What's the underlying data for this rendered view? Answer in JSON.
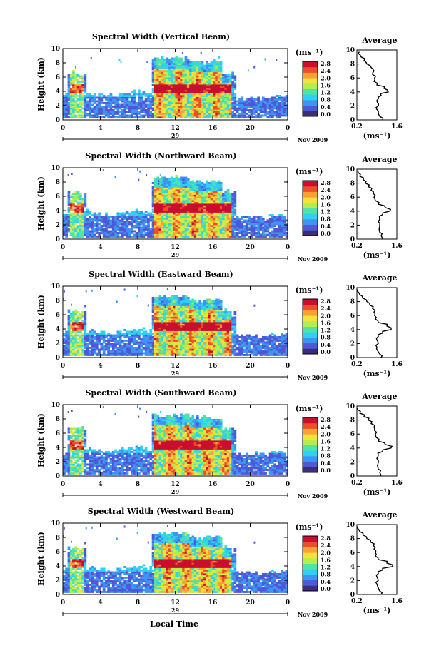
{
  "figure": {
    "bottom_xlabel": "Local Time"
  },
  "colorbar": {
    "unit_label": "(ms⁻¹)",
    "ticks": [
      "0.0",
      "0.4",
      "0.8",
      "1.2",
      "1.6",
      "2.0",
      "2.4",
      "2.8"
    ],
    "colors": [
      "#3b2d7a",
      "#4f58d6",
      "#3e94f0",
      "#2fd0f3",
      "#4ee4a8",
      "#b3ee4c",
      "#f4e23c",
      "#f7a233",
      "#ef4c2c",
      "#c8102e"
    ]
  },
  "chart_data": [
    {
      "type": "heatmap",
      "title": "Spectral Width (Vertical Beam)",
      "ylabel": "Height (km)",
      "xticks": [
        "0",
        "4",
        "8",
        "12",
        "16",
        "20",
        "0"
      ],
      "yticks": [
        "0",
        "2",
        "4",
        "6",
        "8",
        "10"
      ],
      "xlim": [
        0,
        24
      ],
      "ylim": [
        0,
        10
      ],
      "date_label": "29",
      "month_label": "Nov 2009",
      "profile": {
        "title": "Average",
        "xlabel": "(ms⁻¹)",
        "xticks": [
          "0.2",
          "1.6"
        ],
        "xlim": [
          0.2,
          1.6
        ],
        "heights": [
          0,
          0.5,
          1,
          1.5,
          2,
          2.5,
          3,
          3.5,
          4,
          4.5,
          5,
          5.5,
          6,
          6.5,
          7,
          7.5,
          8,
          8.5,
          9,
          9.5
        ],
        "values": [
          1.1,
          1.0,
          0.95,
          0.9,
          0.95,
          0.92,
          0.95,
          1.05,
          1.3,
          1.15,
          0.9,
          0.8,
          0.82,
          0.75,
          0.8,
          0.7,
          0.55,
          0.45,
          0.35,
          0.25
        ]
      }
    },
    {
      "type": "heatmap",
      "title": "Spectral Width (Northward Beam)",
      "ylabel": "Height (km)",
      "xticks": [
        "0",
        "4",
        "8",
        "12",
        "16",
        "20",
        "0"
      ],
      "yticks": [
        "0",
        "2",
        "4",
        "6",
        "8",
        "10"
      ],
      "xlim": [
        0,
        24
      ],
      "ylim": [
        0,
        10
      ],
      "date_label": "29",
      "month_label": "Nov 2009",
      "profile": {
        "title": "Average",
        "xlabel": "(ms⁻¹)",
        "xticks": [
          "0.2",
          "1.6"
        ],
        "xlim": [
          0.2,
          1.6
        ],
        "heights": [
          0,
          0.5,
          1,
          1.5,
          2,
          2.5,
          3,
          3.5,
          4,
          4.5,
          5,
          5.5,
          6,
          6.5,
          7,
          7.5,
          8,
          8.5,
          9,
          9.5
        ],
        "values": [
          1.1,
          1.05,
          1.0,
          0.98,
          1.0,
          0.95,
          1.0,
          1.1,
          1.35,
          1.2,
          0.95,
          0.85,
          0.8,
          0.78,
          0.7,
          0.6,
          0.5,
          0.42,
          0.3,
          0.25
        ]
      }
    },
    {
      "type": "heatmap",
      "title": "Spectral Width (Eastward Beam)",
      "ylabel": "Height (km)",
      "xticks": [
        "0",
        "4",
        "8",
        "12",
        "16",
        "20",
        "0"
      ],
      "yticks": [
        "0",
        "2",
        "4",
        "6",
        "8",
        "10"
      ],
      "xlim": [
        0,
        24
      ],
      "ylim": [
        0,
        10
      ],
      "date_label": "29",
      "month_label": "Nov 2009",
      "profile": {
        "title": "Average",
        "xlabel": "(ms⁻¹)",
        "xticks": [
          "0.2",
          "1.6"
        ],
        "xlim": [
          0.2,
          1.6
        ],
        "heights": [
          0,
          0.5,
          1,
          1.5,
          2,
          2.5,
          3,
          3.5,
          4,
          4.5,
          5,
          5.5,
          6,
          6.5,
          7,
          7.5,
          8,
          8.5,
          9,
          9.5
        ],
        "values": [
          1.05,
          1.0,
          0.92,
          0.9,
          0.95,
          0.9,
          0.95,
          1.1,
          1.4,
          1.25,
          0.95,
          0.85,
          0.82,
          0.8,
          0.75,
          0.65,
          0.55,
          0.4,
          0.3,
          0.22
        ]
      }
    },
    {
      "type": "heatmap",
      "title": "Spectral Width (Southward Beam)",
      "ylabel": "Height (km)",
      "xticks": [
        "0",
        "4",
        "8",
        "12",
        "16",
        "20",
        "0"
      ],
      "yticks": [
        "0",
        "2",
        "4",
        "6",
        "8",
        "10"
      ],
      "xlim": [
        0,
        24
      ],
      "ylim": [
        0,
        10
      ],
      "date_label": "29",
      "month_label": "Nov 2009",
      "profile": {
        "title": "Average",
        "xlabel": "(ms⁻¹)",
        "xticks": [
          "0.2",
          "1.6"
        ],
        "xlim": [
          0.2,
          1.6
        ],
        "heights": [
          0,
          0.5,
          1,
          1.5,
          2,
          2.5,
          3,
          3.5,
          4,
          4.5,
          5,
          5.5,
          6,
          6.5,
          7,
          7.5,
          8,
          8.5,
          9,
          9.5
        ],
        "values": [
          1.05,
          1.0,
          0.95,
          0.92,
          0.95,
          0.9,
          0.95,
          1.1,
          1.4,
          1.2,
          0.95,
          0.88,
          0.85,
          0.82,
          0.8,
          0.7,
          0.6,
          0.45,
          0.3,
          0.22
        ]
      }
    },
    {
      "type": "heatmap",
      "title": "Spectral Width (Westward Beam)",
      "ylabel": "Height (km)",
      "xticks": [
        "0",
        "4",
        "8",
        "12",
        "16",
        "20",
        "0"
      ],
      "yticks": [
        "0",
        "2",
        "4",
        "6",
        "8",
        "10"
      ],
      "xlim": [
        0,
        24
      ],
      "ylim": [
        0,
        10
      ],
      "date_label": "29",
      "month_label": "Nov 2009",
      "profile": {
        "title": "Average",
        "xlabel": "(ms⁻¹)",
        "xticks": [
          "0.2",
          "1.6"
        ],
        "xlim": [
          0.2,
          1.6
        ],
        "heights": [
          0,
          0.5,
          1,
          1.5,
          2,
          2.5,
          3,
          3.5,
          4,
          4.5,
          5,
          5.5,
          6,
          6.5,
          7,
          7.5,
          8,
          8.5,
          9,
          9.5
        ],
        "values": [
          1.05,
          1.0,
          0.95,
          0.9,
          0.95,
          0.9,
          0.95,
          1.1,
          1.45,
          1.25,
          0.95,
          0.85,
          0.85,
          0.8,
          0.78,
          0.68,
          0.55,
          0.42,
          0.3,
          0.22
        ]
      }
    }
  ]
}
